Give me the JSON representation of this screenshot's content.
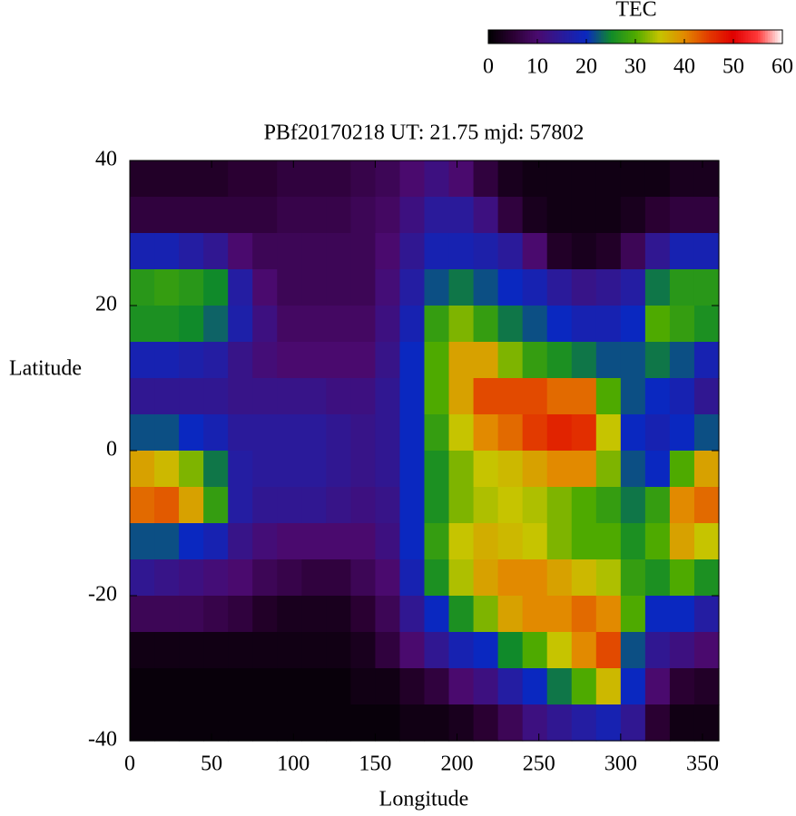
{
  "chart_data": {
    "type": "heatmap",
    "title": "PBf20170218  UT: 21.75  mjd: 57802",
    "x_label": "Longitude",
    "y_label": "Latitude",
    "colorbar_label": "TEC",
    "xlim": [
      0,
      360
    ],
    "ylim": [
      -40,
      40
    ],
    "xticks": [
      0,
      50,
      100,
      150,
      200,
      250,
      300,
      350
    ],
    "yticks": [
      -40,
      -20,
      0,
      20,
      40
    ],
    "clim": [
      0,
      60
    ],
    "cticks": [
      0,
      10,
      20,
      30,
      40,
      50,
      60
    ],
    "colormap": [
      "#000000",
      "#2a0032",
      "#4a0a6e",
      "#2a1a9a",
      "#0a28c0",
      "#108a2a",
      "#4eaa00",
      "#c6c400",
      "#e28a00",
      "#e23a00",
      "#e00000",
      "#ff3a3a",
      "#ffffff"
    ],
    "values": [
      [
        4,
        4,
        4,
        4,
        5,
        5,
        6,
        6,
        6,
        7,
        8,
        10,
        12,
        10,
        6,
        3,
        2,
        2,
        2,
        2,
        2,
        2,
        3,
        3
      ],
      [
        6,
        6,
        6,
        6,
        6,
        6,
        7,
        7,
        7,
        8,
        9,
        12,
        15,
        15,
        12,
        6,
        3,
        2,
        2,
        2,
        3,
        5,
        6,
        6
      ],
      [
        18,
        18,
        16,
        14,
        10,
        8,
        8,
        8,
        8,
        8,
        10,
        14,
        18,
        18,
        17,
        15,
        10,
        4,
        3,
        4,
        8,
        14,
        18,
        18
      ],
      [
        27,
        28,
        27,
        25,
        16,
        10,
        8,
        8,
        8,
        8,
        11,
        16,
        22,
        24,
        22,
        20,
        18,
        15,
        13,
        14,
        16,
        24,
        27,
        27
      ],
      [
        26,
        26,
        25,
        23,
        17,
        12,
        9,
        9,
        9,
        9,
        12,
        18,
        28,
        32,
        28,
        24,
        22,
        20,
        18,
        18,
        20,
        30,
        28,
        26
      ],
      [
        18,
        18,
        17,
        16,
        13,
        11,
        10,
        10,
        10,
        10,
        13,
        20,
        30,
        38,
        38,
        32,
        28,
        26,
        24,
        22,
        22,
        24,
        22,
        18
      ],
      [
        14,
        14,
        14,
        14,
        13,
        13,
        13,
        13,
        12,
        12,
        14,
        20,
        30,
        38,
        44,
        44,
        44,
        42,
        42,
        30,
        22,
        20,
        18,
        14
      ],
      [
        22,
        22,
        20,
        18,
        15,
        15,
        15,
        15,
        14,
        13,
        14,
        20,
        28,
        35,
        40,
        42,
        45,
        47,
        46,
        35,
        20,
        18,
        20,
        22
      ],
      [
        38,
        36,
        32,
        24,
        16,
        15,
        15,
        15,
        14,
        13,
        14,
        20,
        26,
        32,
        35,
        36,
        38,
        40,
        40,
        32,
        22,
        20,
        30,
        38
      ],
      [
        42,
        43,
        38,
        28,
        16,
        14,
        14,
        14,
        13,
        12,
        13,
        20,
        26,
        32,
        34,
        35,
        34,
        32,
        30,
        28,
        24,
        28,
        40,
        42
      ],
      [
        22,
        22,
        20,
        18,
        13,
        11,
        10,
        10,
        10,
        10,
        12,
        20,
        28,
        35,
        37,
        36,
        35,
        32,
        30,
        30,
        26,
        30,
        38,
        35
      ],
      [
        14,
        13,
        12,
        11,
        10,
        8,
        7,
        6,
        6,
        8,
        10,
        18,
        26,
        34,
        38,
        40,
        40,
        38,
        36,
        34,
        28,
        26,
        30,
        26
      ],
      [
        8,
        8,
        8,
        7,
        6,
        4,
        3,
        3,
        3,
        5,
        8,
        14,
        20,
        26,
        32,
        38,
        40,
        40,
        42,
        40,
        30,
        20,
        20,
        16
      ],
      [
        2,
        2,
        2,
        2,
        2,
        2,
        2,
        2,
        2,
        3,
        6,
        10,
        14,
        18,
        20,
        25,
        30,
        35,
        40,
        44,
        22,
        14,
        12,
        10
      ],
      [
        1,
        1,
        1,
        1,
        1,
        1,
        1,
        1,
        1,
        2,
        2,
        4,
        6,
        10,
        12,
        16,
        20,
        24,
        30,
        36,
        20,
        10,
        5,
        4
      ],
      [
        1,
        1,
        1,
        1,
        1,
        1,
        1,
        1,
        1,
        1,
        1,
        2,
        2,
        3,
        5,
        8,
        12,
        14,
        16,
        18,
        14,
        5,
        2,
        2
      ]
    ]
  }
}
